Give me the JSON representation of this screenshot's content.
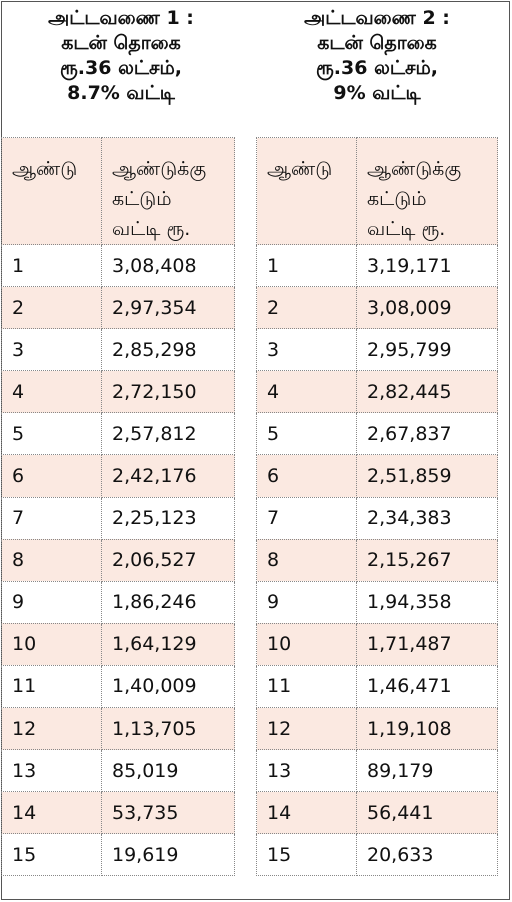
{
  "table1": {
    "title_lines": [
      "அட்டவணை 1 :",
      "கடன் தொகை",
      "ரூ.36 லட்சம்,",
      "8.7% வட்டி"
    ],
    "header": {
      "year": "ஆண்டு",
      "interest_lines": [
        "ஆண்டுக்கு",
        "கட்டும்",
        "வட்டி ரூ."
      ]
    },
    "rows": [
      [
        "1",
        "3,08,408"
      ],
      [
        "2",
        "2,97,354"
      ],
      [
        "3",
        "2,85,298"
      ],
      [
        "4",
        "2,72,150"
      ],
      [
        "5",
        "2,57,812"
      ],
      [
        "6",
        "2,42,176"
      ],
      [
        "7",
        "2,25,123"
      ],
      [
        "8",
        "2,06,527"
      ],
      [
        "9",
        "1,86,246"
      ],
      [
        "10",
        "1,64,129"
      ],
      [
        "11",
        "1,40,009"
      ],
      [
        "12",
        "1,13,705"
      ],
      [
        "13",
        "85,019"
      ],
      [
        "14",
        "53,735"
      ],
      [
        "15",
        "19,619"
      ]
    ]
  },
  "table2": {
    "title_lines": [
      "அட்டவணை 2 :",
      "கடன் தொகை",
      "ரூ.36 லட்சம்,",
      "9% வட்டி"
    ],
    "header": {
      "year": "ஆண்டு",
      "interest_lines": [
        "ஆண்டுக்கு",
        "கட்டும்",
        "வட்டி ரூ."
      ]
    },
    "rows": [
      [
        "1",
        "3,19,171"
      ],
      [
        "2",
        "3,08,009"
      ],
      [
        "3",
        "2,95,799"
      ],
      [
        "4",
        "2,82,445"
      ],
      [
        "5",
        "2,67,837"
      ],
      [
        "6",
        "2,51,859"
      ],
      [
        "7",
        "2,34,383"
      ],
      [
        "8",
        "2,15,267"
      ],
      [
        "9",
        "1,94,358"
      ],
      [
        "10",
        "1,71,487"
      ],
      [
        "11",
        "1,46,471"
      ],
      [
        "12",
        "1,19,108"
      ],
      [
        "13",
        "89,179"
      ],
      [
        "14",
        "56,441"
      ],
      [
        "15",
        "20,633"
      ]
    ]
  },
  "colors": {
    "row_shade": "#fbe9e1",
    "border": "#888888"
  }
}
